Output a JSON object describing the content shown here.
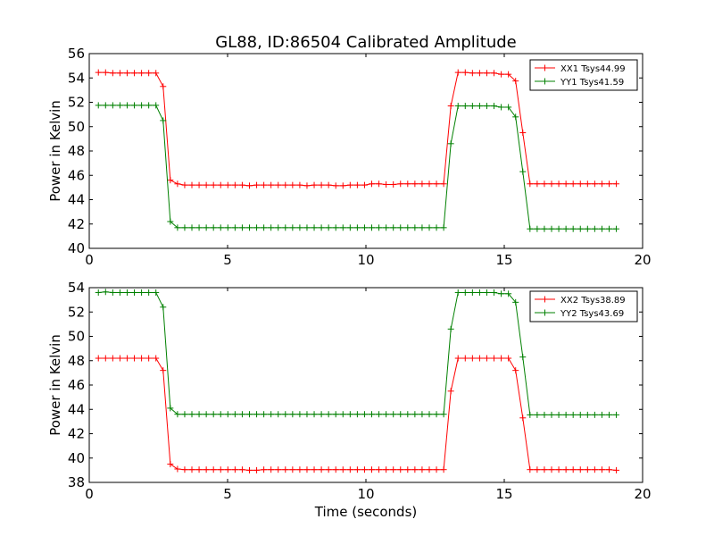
{
  "figure": {
    "title": "GL88, ID:86504 Calibrated Amplitude",
    "xlabel": "Time (seconds)",
    "colors": {
      "red": "#ff0000",
      "green": "#008000",
      "axis": "#000000"
    }
  },
  "chart_data": [
    {
      "type": "line",
      "title": "GL88, ID:86504 Calibrated Amplitude",
      "xlabel": "",
      "ylabel": "Power in Kelvin",
      "xlim": [
        0,
        20
      ],
      "ylim": [
        40,
        56
      ],
      "xticks": [
        0,
        5,
        10,
        15,
        20
      ],
      "yticks": [
        40,
        42,
        44,
        46,
        48,
        50,
        52,
        54,
        56
      ],
      "grid": false,
      "legend": "top-right",
      "x": [
        0.33,
        0.59,
        0.85,
        1.11,
        1.37,
        1.63,
        1.89,
        2.15,
        2.41,
        2.67,
        2.93,
        3.19,
        3.45,
        3.71,
        3.97,
        4.23,
        4.49,
        4.75,
        5.01,
        5.27,
        5.53,
        5.79,
        6.05,
        6.31,
        6.57,
        6.83,
        7.09,
        7.35,
        7.61,
        7.87,
        8.13,
        8.39,
        8.65,
        8.91,
        9.17,
        9.43,
        9.69,
        9.95,
        10.21,
        10.47,
        10.73,
        10.99,
        11.25,
        11.51,
        11.77,
        12.03,
        12.29,
        12.55,
        12.81,
        13.07,
        13.33,
        13.59,
        13.85,
        14.11,
        14.37,
        14.63,
        14.89,
        15.15,
        15.41,
        15.67,
        15.93,
        16.19,
        16.45,
        16.71,
        16.97,
        17.23,
        17.49,
        17.75,
        18.01,
        18.27,
        18.53,
        18.79,
        19.05
      ],
      "series": [
        {
          "name": "XX1 Tsys44.99",
          "color": "#ff0000",
          "values": [
            54.45,
            54.45,
            54.4,
            54.4,
            54.4,
            54.4,
            54.4,
            54.4,
            54.4,
            53.3,
            45.6,
            45.3,
            45.2,
            45.2,
            45.2,
            45.2,
            45.2,
            45.2,
            45.2,
            45.2,
            45.2,
            45.15,
            45.2,
            45.2,
            45.2,
            45.2,
            45.2,
            45.2,
            45.2,
            45.15,
            45.2,
            45.2,
            45.2,
            45.15,
            45.15,
            45.2,
            45.2,
            45.2,
            45.3,
            45.3,
            45.25,
            45.25,
            45.3,
            45.3,
            45.3,
            45.3,
            45.3,
            45.3,
            45.3,
            51.7,
            54.45,
            54.45,
            54.4,
            54.4,
            54.4,
            54.4,
            54.3,
            54.3,
            53.75,
            49.5,
            45.3,
            45.3,
            45.3,
            45.3,
            45.3,
            45.3,
            45.3,
            45.3,
            45.3,
            45.3,
            45.3,
            45.3,
            45.3
          ]
        },
        {
          "name": "YY1 Tsys41.59",
          "color": "#008000",
          "values": [
            51.75,
            51.75,
            51.75,
            51.75,
            51.75,
            51.75,
            51.75,
            51.75,
            51.75,
            50.5,
            42.2,
            41.7,
            41.7,
            41.7,
            41.7,
            41.7,
            41.7,
            41.7,
            41.7,
            41.7,
            41.7,
            41.7,
            41.7,
            41.7,
            41.7,
            41.7,
            41.7,
            41.7,
            41.7,
            41.7,
            41.7,
            41.7,
            41.7,
            41.7,
            41.7,
            41.7,
            41.7,
            41.7,
            41.7,
            41.7,
            41.7,
            41.7,
            41.7,
            41.7,
            41.7,
            41.7,
            41.7,
            41.7,
            41.7,
            48.6,
            51.7,
            51.7,
            51.7,
            51.7,
            51.7,
            51.7,
            51.6,
            51.6,
            50.8,
            46.3,
            41.6,
            41.6,
            41.6,
            41.6,
            41.6,
            41.6,
            41.6,
            41.6,
            41.6,
            41.6,
            41.6,
            41.6,
            41.6
          ]
        }
      ]
    },
    {
      "type": "line",
      "title": "",
      "xlabel": "Time (seconds)",
      "ylabel": "Power in Kelvin",
      "xlim": [
        0,
        20
      ],
      "ylim": [
        38,
        54
      ],
      "xticks": [
        0,
        5,
        10,
        15,
        20
      ],
      "yticks": [
        38,
        40,
        42,
        44,
        46,
        48,
        50,
        52,
        54
      ],
      "grid": false,
      "legend": "top-right",
      "x": [
        0.33,
        0.59,
        0.85,
        1.11,
        1.37,
        1.63,
        1.89,
        2.15,
        2.41,
        2.67,
        2.93,
        3.19,
        3.45,
        3.71,
        3.97,
        4.23,
        4.49,
        4.75,
        5.01,
        5.27,
        5.53,
        5.79,
        6.05,
        6.31,
        6.57,
        6.83,
        7.09,
        7.35,
        7.61,
        7.87,
        8.13,
        8.39,
        8.65,
        8.91,
        9.17,
        9.43,
        9.69,
        9.95,
        10.21,
        10.47,
        10.73,
        10.99,
        11.25,
        11.51,
        11.77,
        12.03,
        12.29,
        12.55,
        12.81,
        13.07,
        13.33,
        13.59,
        13.85,
        14.11,
        14.37,
        14.63,
        14.89,
        15.15,
        15.41,
        15.67,
        15.93,
        16.19,
        16.45,
        16.71,
        16.97,
        17.23,
        17.49,
        17.75,
        18.01,
        18.27,
        18.53,
        18.79,
        19.05
      ],
      "series": [
        {
          "name": "XX2 Tsys38.89",
          "color": "#ff0000",
          "values": [
            48.2,
            48.2,
            48.2,
            48.2,
            48.2,
            48.2,
            48.2,
            48.2,
            48.2,
            47.2,
            39.5,
            39.1,
            39.05,
            39.05,
            39.05,
            39.05,
            39.05,
            39.05,
            39.05,
            39.05,
            39.05,
            39.0,
            39.0,
            39.05,
            39.05,
            39.05,
            39.05,
            39.05,
            39.05,
            39.05,
            39.05,
            39.05,
            39.05,
            39.05,
            39.05,
            39.05,
            39.05,
            39.05,
            39.05,
            39.05,
            39.05,
            39.05,
            39.05,
            39.05,
            39.05,
            39.05,
            39.05,
            39.05,
            39.05,
            45.5,
            48.2,
            48.2,
            48.2,
            48.2,
            48.2,
            48.2,
            48.2,
            48.2,
            47.2,
            43.3,
            39.05,
            39.05,
            39.05,
            39.05,
            39.05,
            39.05,
            39.05,
            39.05,
            39.05,
            39.05,
            39.05,
            39.05,
            39.0
          ]
        },
        {
          "name": "YY2 Tsys43.69",
          "color": "#008000",
          "values": [
            53.6,
            53.65,
            53.6,
            53.6,
            53.6,
            53.6,
            53.6,
            53.6,
            53.6,
            52.4,
            44.1,
            43.6,
            43.6,
            43.6,
            43.6,
            43.6,
            43.6,
            43.6,
            43.6,
            43.6,
            43.6,
            43.6,
            43.6,
            43.6,
            43.6,
            43.6,
            43.6,
            43.6,
            43.6,
            43.6,
            43.6,
            43.6,
            43.6,
            43.6,
            43.6,
            43.6,
            43.6,
            43.6,
            43.6,
            43.6,
            43.6,
            43.6,
            43.6,
            43.6,
            43.6,
            43.6,
            43.6,
            43.6,
            43.6,
            50.6,
            53.6,
            53.6,
            53.6,
            53.6,
            53.6,
            53.6,
            53.5,
            53.5,
            52.8,
            48.3,
            43.55,
            43.55,
            43.55,
            43.55,
            43.55,
            43.55,
            43.55,
            43.55,
            43.55,
            43.55,
            43.55,
            43.55,
            43.55
          ]
        }
      ]
    }
  ]
}
